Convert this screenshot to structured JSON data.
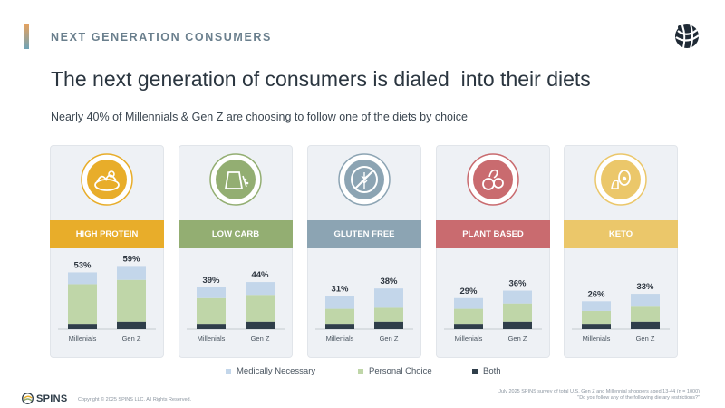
{
  "header": {
    "section_title": "NEXT GENERATION CONSUMERS"
  },
  "main": {
    "title": "The next generation of consumers is dialed  into their diets",
    "subtitle": "Nearly 40% of Millennials & Gen Z are choosing to follow one of the diets by choice"
  },
  "colors": {
    "medically_necessary": "#c3d6ea",
    "personal_choice": "#bfd6a8",
    "both": "#2f3e4a",
    "high_protein": "#e8ad2a",
    "low_carb": "#93ae72",
    "gluten_free": "#8ca4b3",
    "plant_based": "#c96b6f",
    "keto": "#ebc76a"
  },
  "chart_data": [
    {
      "type": "bar",
      "stacked": true,
      "title": "HIGH PROTEIN",
      "icon": "protein-foods-icon",
      "categories": [
        "Millenials",
        "Gen Z"
      ],
      "totals": [
        "53%",
        "59%"
      ],
      "ylim": [
        0,
        70
      ],
      "series": [
        {
          "name": "Both",
          "values": [
            5,
            7
          ]
        },
        {
          "name": "Personal Choice",
          "values": [
            37,
            39
          ]
        },
        {
          "name": "Medically Necessary",
          "values": [
            11,
            13
          ]
        }
      ]
    },
    {
      "type": "bar",
      "stacked": true,
      "title": "LOW CARB",
      "icon": "grain-bag-icon",
      "categories": [
        "Millenials",
        "Gen Z"
      ],
      "totals": [
        "39%",
        "44%"
      ],
      "ylim": [
        0,
        70
      ],
      "series": [
        {
          "name": "Both",
          "values": [
            5,
            7
          ]
        },
        {
          "name": "Personal Choice",
          "values": [
            24,
            25
          ]
        },
        {
          "name": "Medically Necessary",
          "values": [
            10,
            12
          ]
        }
      ]
    },
    {
      "type": "bar",
      "stacked": true,
      "title": "GLUTEN FREE",
      "icon": "no-wheat-icon",
      "categories": [
        "Millenials",
        "Gen Z"
      ],
      "totals": [
        "31%",
        "38%"
      ],
      "ylim": [
        0,
        70
      ],
      "series": [
        {
          "name": "Both",
          "values": [
            5,
            7
          ]
        },
        {
          "name": "Personal Choice",
          "values": [
            14,
            13
          ]
        },
        {
          "name": "Medically Necessary",
          "values": [
            12,
            18
          ]
        }
      ]
    },
    {
      "type": "bar",
      "stacked": true,
      "title": "PLANT BASED",
      "icon": "vegetables-icon",
      "categories": [
        "Millenials",
        "Gen Z"
      ],
      "totals": [
        "29%",
        "36%"
      ],
      "ylim": [
        0,
        70
      ],
      "series": [
        {
          "name": "Both",
          "values": [
            5,
            7
          ]
        },
        {
          "name": "Personal Choice",
          "values": [
            14,
            17
          ]
        },
        {
          "name": "Medically Necessary",
          "values": [
            10,
            12
          ]
        }
      ]
    },
    {
      "type": "bar",
      "stacked": true,
      "title": "KETO",
      "icon": "keto-foods-icon",
      "categories": [
        "Millenials",
        "Gen Z"
      ],
      "totals": [
        "26%",
        "33%"
      ],
      "ylim": [
        0,
        70
      ],
      "series": [
        {
          "name": "Both",
          "values": [
            5,
            7
          ]
        },
        {
          "name": "Personal Choice",
          "values": [
            12,
            14
          ]
        },
        {
          "name": "Medically Necessary",
          "values": [
            9,
            12
          ]
        }
      ]
    }
  ],
  "legend": [
    "Medically Necessary",
    "Personal Choice",
    "Both"
  ],
  "footer": {
    "brand": "SPINS",
    "copyright": "Copyright © 2025 SPINS LLC. All Rights Reserved.",
    "footnote_line1": "July 2025 SPINS survey of total U.S. Gen Z and Millennial shoppers aged 13-44 (n = 1000)",
    "footnote_line2": "\"Do you follow any of the following dietary restrictions?\""
  }
}
